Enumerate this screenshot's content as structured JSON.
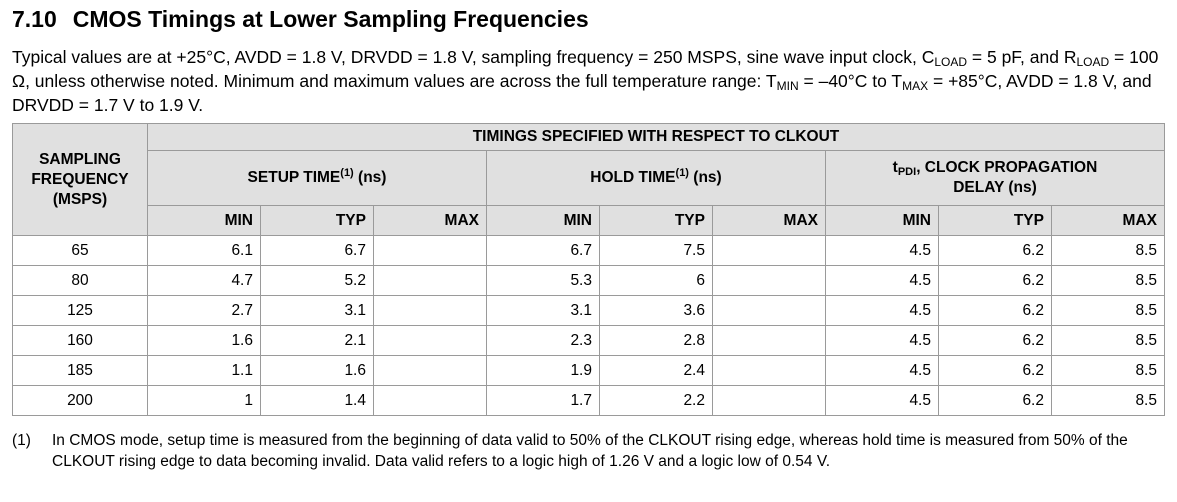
{
  "section": {
    "number": "7.10",
    "title": "CMOS Timings at Lower Sampling Frequencies"
  },
  "description": [
    {
      "text": "Typical values are at +25°C, AVDD = 1.8 V, DRVDD = 1.8 V, sampling frequency = 250 MSPS, sine wave input clock, C"
    },
    {
      "sub": "LOAD"
    },
    {
      "text": " = 5 pF, and R"
    },
    {
      "sub": "LOAD"
    },
    {
      "text": " = 100 Ω, unless otherwise noted. Minimum and maximum values are across the full temperature range: T"
    },
    {
      "sub": "MIN"
    },
    {
      "text": " = –40°C to T"
    },
    {
      "sub": "MAX"
    },
    {
      "text": " = +85°C, AVDD = 1.8 V, and DRVDD = 1.7 V to 1.9 V."
    }
  ],
  "table": {
    "row_header": "SAMPLING FREQUENCY (MSPS)",
    "group_header": "TIMINGS SPECIFIED WITH RESPECT TO CLKOUT",
    "setup_header": {
      "text": "SETUP TIME",
      "note": "(1)",
      "unit": " (ns)"
    },
    "hold_header": {
      "text": "HOLD TIME",
      "note": "(1)",
      "unit": " (ns)"
    },
    "tpd_header": {
      "symbol": "t",
      "sub": "PDI",
      "text": ", CLOCK PROPAGATION DELAY (ns)"
    },
    "subheaders": [
      "MIN",
      "TYP",
      "MAX",
      "MIN",
      "TYP",
      "MAX",
      "MIN",
      "TYP",
      "MAX"
    ],
    "rows": [
      {
        "freq": 65,
        "setup": {
          "min": 6.1,
          "typ": 6.7
        },
        "hold": {
          "min": 6.7,
          "typ": 7.5
        },
        "tpd": {
          "min": 4.5,
          "typ": 6.2,
          "max": 8.5
        }
      },
      {
        "freq": 80,
        "setup": {
          "min": 4.7,
          "typ": 5.2
        },
        "hold": {
          "min": 5.3,
          "typ": 6
        },
        "tpd": {
          "min": 4.5,
          "typ": 6.2,
          "max": 8.5
        }
      },
      {
        "freq": 125,
        "setup": {
          "min": 2.7,
          "typ": 3.1
        },
        "hold": {
          "min": 3.1,
          "typ": 3.6
        },
        "tpd": {
          "min": 4.5,
          "typ": 6.2,
          "max": 8.5
        }
      },
      {
        "freq": 160,
        "setup": {
          "min": 1.6,
          "typ": 2.1
        },
        "hold": {
          "min": 2.3,
          "typ": 2.8
        },
        "tpd": {
          "min": 4.5,
          "typ": 6.2,
          "max": 8.5
        }
      },
      {
        "freq": 185,
        "setup": {
          "min": 1.1,
          "typ": 1.6
        },
        "hold": {
          "min": 1.9,
          "typ": 2.4
        },
        "tpd": {
          "min": 4.5,
          "typ": 6.2,
          "max": 8.5
        }
      },
      {
        "freq": 200,
        "setup": {
          "min": 1,
          "typ": 1.4
        },
        "hold": {
          "min": 1.7,
          "typ": 2.2
        },
        "tpd": {
          "min": 4.5,
          "typ": 6.2,
          "max": 8.5
        }
      }
    ]
  },
  "footnote": {
    "marker": "(1)",
    "text": "In CMOS mode, setup time is measured from the beginning of data valid to 50% of the CLKOUT rising edge, whereas hold time is measured from 50% of the CLKOUT rising edge to data becoming invalid. Data valid refers to a logic high of 1.26 V and a logic low of 0.54 V."
  }
}
